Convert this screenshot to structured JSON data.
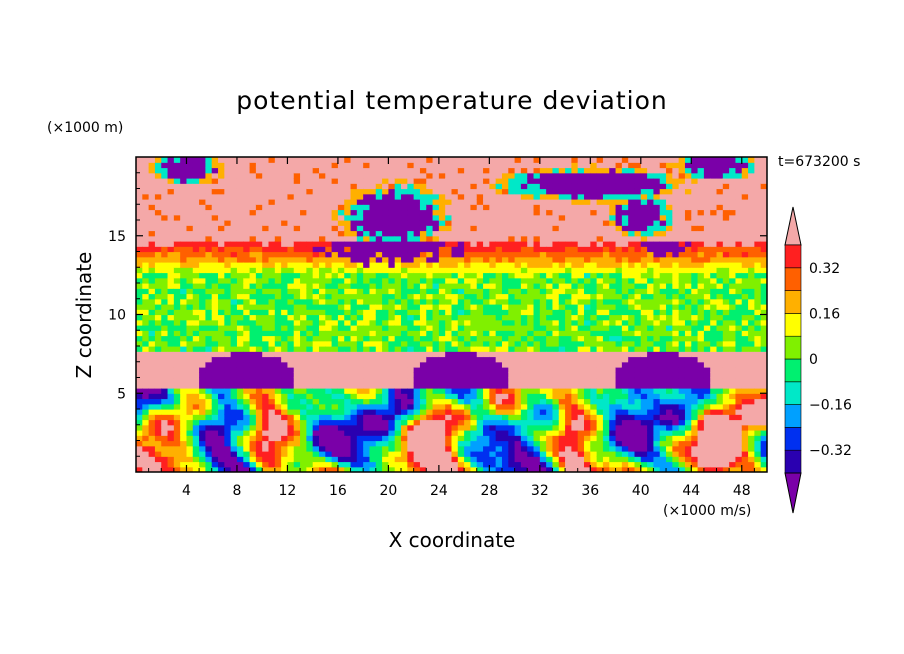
{
  "chart_data": {
    "type": "heatmap",
    "title": "potential temperature deviation",
    "xlabel": "X coordinate",
    "ylabel": "Z coordinate",
    "x_unit": "(×1000 m/s)",
    "y_unit": "(×1000 m)",
    "time_label": "t=673200 s",
    "xlim": [
      0,
      50
    ],
    "ylim": [
      0,
      20
    ],
    "x_ticks": [
      4,
      8,
      12,
      16,
      20,
      24,
      28,
      32,
      36,
      40,
      44,
      48
    ],
    "y_ticks": [
      5,
      10,
      15
    ],
    "colorbar": {
      "levels": [
        -0.4,
        -0.32,
        -0.24,
        -0.16,
        -0.08,
        0,
        0.08,
        0.16,
        0.24,
        0.32,
        0.4
      ],
      "tick_labels": [
        "0.32",
        "0.16",
        "0",
        "−0.16",
        "−0.32"
      ],
      "tick_values": [
        0.32,
        0.16,
        0,
        -0.16,
        -0.32
      ],
      "colors": [
        "#7a00a8",
        "#2a00b0",
        "#0030f0",
        "#00a0ff",
        "#00e8c8",
        "#00f070",
        "#80f000",
        "#ffff00",
        "#ffb000",
        "#ff6000",
        "#ff2020",
        "#f4a8a8"
      ],
      "extend": "both"
    },
    "layers": [
      {
        "z_range": [
          0,
          6.1
        ],
        "description_value": "mixed",
        "typical_values": [
          -0.4,
          0.4
        ]
      },
      {
        "z_range": [
          6.1,
          7.6
        ],
        "typical_value": 0.4
      },
      {
        "z_range": [
          7.6,
          12.8
        ],
        "typical_value": 0.02
      },
      {
        "z_range": [
          12.8,
          14.7
        ],
        "typical_value": 0.25
      },
      {
        "z_range": [
          14.7,
          20
        ],
        "typical_value": 0.4
      }
    ],
    "grid": false
  }
}
